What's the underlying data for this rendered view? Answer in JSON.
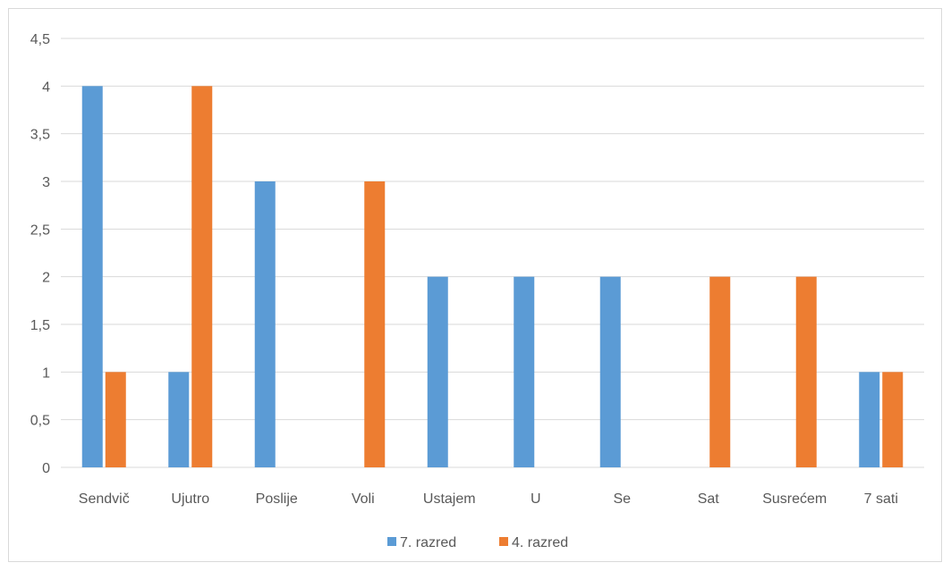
{
  "chart_data": {
    "type": "bar",
    "categories": [
      "Sendvič",
      "Ujutro",
      "Poslije",
      "Voli",
      "Ustajem",
      "U",
      "Se",
      "Sat",
      "Susrećem",
      "7 sati"
    ],
    "series": [
      {
        "name": "7. razred",
        "values": [
          4,
          1,
          3,
          0,
          2,
          2,
          2,
          0,
          0,
          1
        ]
      },
      {
        "name": "4. razred",
        "values": [
          1,
          4,
          0,
          3,
          0,
          0,
          0,
          2,
          2,
          1
        ]
      }
    ],
    "ylim": [
      0,
      4.5
    ],
    "yticks": [
      "0",
      "0,5",
      "1",
      "1,5",
      "2",
      "2,5",
      "3",
      "3,5",
      "4",
      "4,5"
    ],
    "grid": true,
    "legend_position": "bottom",
    "colors": {
      "series1": "#5b9bd5",
      "series2": "#ed7d31",
      "grid": "#d9d9d9",
      "text": "#595959"
    }
  }
}
